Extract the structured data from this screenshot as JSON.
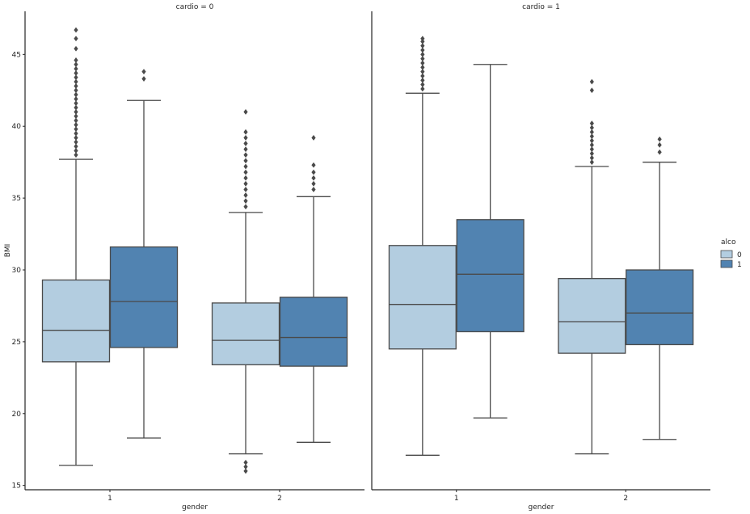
{
  "chart_data": {
    "type": "boxplot",
    "facet_variable": "cardio",
    "panels": [
      {
        "title": "cardio = 0",
        "groups": [
          {
            "gender": "1",
            "boxes": [
              {
                "alco": "0",
                "whisker_low": 16.4,
                "q1": 23.6,
                "median": 25.8,
                "q3": 29.3,
                "whisker_high": 37.7,
                "outliers": [
                  38.0,
                  38.3,
                  38.6,
                  38.9,
                  39.2,
                  39.5,
                  39.8,
                  40.1,
                  40.4,
                  40.7,
                  41.0,
                  41.3,
                  41.6,
                  41.9,
                  42.2,
                  42.5,
                  42.8,
                  43.1,
                  43.4,
                  43.7,
                  44.0,
                  44.3,
                  44.6,
                  45.4,
                  46.1,
                  46.7
                ]
              },
              {
                "alco": "1",
                "whisker_low": 18.3,
                "q1": 24.6,
                "median": 27.8,
                "q3": 31.6,
                "whisker_high": 41.8,
                "outliers": [
                  43.3,
                  43.8
                ]
              }
            ]
          },
          {
            "gender": "2",
            "boxes": [
              {
                "alco": "0",
                "whisker_low": 17.2,
                "q1": 23.4,
                "median": 25.1,
                "q3": 27.7,
                "whisker_high": 34.0,
                "outliers": [
                  16.0,
                  16.3,
                  16.6,
                  34.4,
                  34.8,
                  35.2,
                  35.6,
                  36.0,
                  36.4,
                  36.8,
                  37.2,
                  37.6,
                  38.0,
                  38.4,
                  38.8,
                  39.2,
                  39.6,
                  41.0
                ]
              },
              {
                "alco": "1",
                "whisker_low": 18.0,
                "q1": 23.3,
                "median": 25.3,
                "q3": 28.1,
                "whisker_high": 35.1,
                "outliers": [
                  35.6,
                  36.0,
                  36.4,
                  36.8,
                  37.3,
                  39.2
                ]
              }
            ]
          }
        ]
      },
      {
        "title": "cardio = 1",
        "groups": [
          {
            "gender": "1",
            "boxes": [
              {
                "alco": "0",
                "whisker_low": 17.1,
                "q1": 24.5,
                "median": 27.6,
                "q3": 31.7,
                "whisker_high": 42.3,
                "outliers": [
                  42.6,
                  42.9,
                  43.2,
                  43.5,
                  43.8,
                  44.1,
                  44.4,
                  44.7,
                  45.0,
                  45.3,
                  45.6,
                  45.9,
                  46.1
                ]
              },
              {
                "alco": "1",
                "whisker_low": 19.7,
                "q1": 25.7,
                "median": 29.7,
                "q3": 33.5,
                "whisker_high": 44.3,
                "outliers": []
              }
            ]
          },
          {
            "gender": "2",
            "boxes": [
              {
                "alco": "0",
                "whisker_low": 17.2,
                "q1": 24.2,
                "median": 26.4,
                "q3": 29.4,
                "whisker_high": 37.2,
                "outliers": [
                  37.5,
                  37.8,
                  38.1,
                  38.4,
                  38.7,
                  39.0,
                  39.3,
                  39.6,
                  39.9,
                  40.2,
                  42.5,
                  43.1
                ]
              },
              {
                "alco": "1",
                "whisker_low": 18.2,
                "q1": 24.8,
                "median": 27.0,
                "q3": 30.0,
                "whisker_high": 37.5,
                "outliers": [
                  38.2,
                  38.7,
                  39.1
                ]
              }
            ]
          }
        ]
      }
    ],
    "categories": [
      "1",
      "2"
    ],
    "xlabel": "gender",
    "ylabel": "BMI",
    "ylim": [
      14.7,
      48.0
    ],
    "yticks": [
      15,
      20,
      25,
      30,
      35,
      40,
      45
    ],
    "legend": {
      "title": "alco",
      "entries": [
        {
          "label": "0",
          "color": "#b3cde0"
        },
        {
          "label": "1",
          "color": "#5183b1"
        }
      ],
      "placement": "right"
    },
    "grid": false
  }
}
